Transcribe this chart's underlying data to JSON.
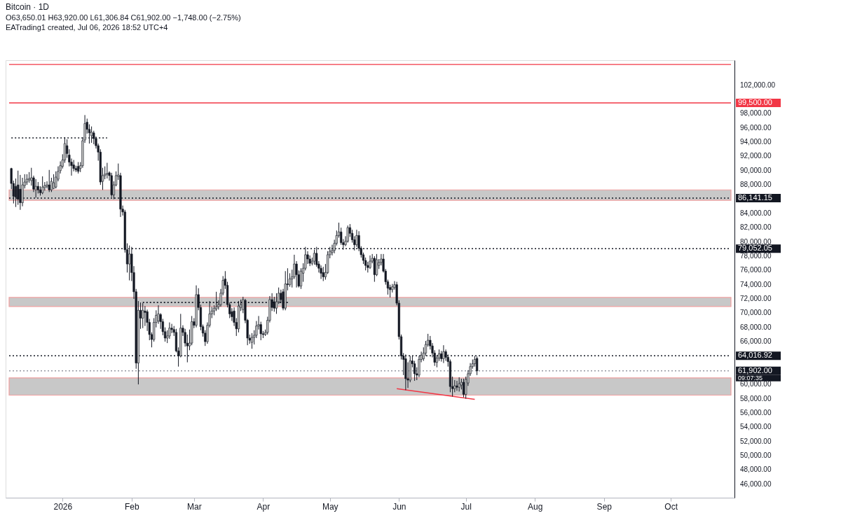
{
  "chart_data": {
    "type": "candlestick",
    "title": "Bitcoin · 1D",
    "subtitle": "O63,650.01 H63,920.00 L61,306.84 C61,902.00 −1,748.00 (−2.75%)",
    "annotations": [
      "EATrading1 created, Jul 06, 2026 18:52 UTC+4",
      "09:07:35"
    ],
    "x": [
      "2025-12-09",
      "2025-12-10",
      "2025-12-11",
      "2025-12-12",
      "2025-12-13",
      "2025-12-14",
      "2025-12-15",
      "2025-12-16",
      "2025-12-17",
      "2025-12-18",
      "2025-12-19",
      "2025-12-20",
      "2025-12-21",
      "2025-12-22",
      "2025-12-23",
      "2025-12-24",
      "2025-12-25",
      "2025-12-26",
      "2025-12-27",
      "2025-12-28",
      "2025-12-29",
      "2025-12-30",
      "2025-12-31",
      "2026-01-01",
      "2026-01-02",
      "2026-01-03",
      "2026-01-04",
      "2026-01-05",
      "2026-01-06",
      "2026-01-07",
      "2026-01-08",
      "2026-01-09",
      "2026-01-10",
      "2026-01-11",
      "2026-01-12",
      "2026-01-13",
      "2026-01-14",
      "2026-01-15",
      "2026-01-16",
      "2026-01-17",
      "2026-01-18",
      "2026-01-19",
      "2026-01-20",
      "2026-01-21",
      "2026-01-22",
      "2026-01-23",
      "2026-01-24",
      "2026-01-25",
      "2026-01-26",
      "2026-01-27",
      "2026-01-28",
      "2026-01-29",
      "2026-01-30",
      "2026-01-31",
      "2026-02-01",
      "2026-02-02",
      "2026-02-03",
      "2026-02-04",
      "2026-02-05",
      "2026-02-06",
      "2026-02-07",
      "2026-02-08",
      "2026-02-09",
      "2026-02-10",
      "2026-02-11",
      "2026-02-12",
      "2026-02-13",
      "2026-02-14",
      "2026-02-15",
      "2026-02-16",
      "2026-02-17",
      "2026-02-18",
      "2026-02-19",
      "2026-02-20",
      "2026-02-21",
      "2026-02-22",
      "2026-02-23",
      "2026-02-24",
      "2026-02-25",
      "2026-02-26",
      "2026-02-27",
      "2026-02-28",
      "2026-03-01",
      "2026-03-02",
      "2026-03-03",
      "2026-03-04",
      "2026-03-05",
      "2026-03-06",
      "2026-03-07",
      "2026-03-08",
      "2026-03-09",
      "2026-03-10",
      "2026-03-11",
      "2026-03-12",
      "2026-03-13",
      "2026-03-14",
      "2026-03-15",
      "2026-03-16",
      "2026-03-17",
      "2026-03-18",
      "2026-03-19",
      "2026-03-20",
      "2026-03-21",
      "2026-03-22",
      "2026-03-23",
      "2026-03-24",
      "2026-03-25",
      "2026-03-26",
      "2026-03-27",
      "2026-03-28",
      "2026-03-29",
      "2026-03-30",
      "2026-03-31",
      "2026-04-01",
      "2026-04-02",
      "2026-04-03",
      "2026-04-04",
      "2026-04-05",
      "2026-04-06",
      "2026-04-07",
      "2026-04-08",
      "2026-04-09",
      "2026-04-10",
      "2026-04-11",
      "2026-04-12",
      "2026-04-13",
      "2026-04-14",
      "2026-04-15",
      "2026-04-16",
      "2026-04-17",
      "2026-04-18",
      "2026-04-19",
      "2026-04-20",
      "2026-04-21",
      "2026-04-22",
      "2026-04-23",
      "2026-04-24",
      "2026-04-25",
      "2026-04-26",
      "2026-04-27",
      "2026-04-28",
      "2026-04-29",
      "2026-04-30",
      "2026-05-01",
      "2026-05-02",
      "2026-05-03",
      "2026-05-04",
      "2026-05-05",
      "2026-05-06",
      "2026-05-07",
      "2026-05-08",
      "2026-05-09",
      "2026-05-10",
      "2026-05-11",
      "2026-05-12",
      "2026-05-13",
      "2026-05-14",
      "2026-05-15",
      "2026-05-16",
      "2026-05-17",
      "2026-05-18",
      "2026-05-19",
      "2026-05-20",
      "2026-05-21",
      "2026-05-22",
      "2026-05-23",
      "2026-05-24",
      "2026-05-25",
      "2026-05-26",
      "2026-05-27",
      "2026-05-28",
      "2026-05-29",
      "2026-05-30",
      "2026-05-31",
      "2026-06-01",
      "2026-06-02",
      "2026-06-03",
      "2026-06-04",
      "2026-06-05",
      "2026-06-06",
      "2026-06-07",
      "2026-06-08",
      "2026-06-09",
      "2026-06-10",
      "2026-06-11",
      "2026-06-12",
      "2026-06-13",
      "2026-06-14",
      "2026-06-15",
      "2026-06-16",
      "2026-06-17",
      "2026-06-18",
      "2026-06-19",
      "2026-06-20",
      "2026-06-21",
      "2026-06-22",
      "2026-06-23",
      "2026-06-24",
      "2026-06-25",
      "2026-06-26",
      "2026-06-27",
      "2026-06-28",
      "2026-06-29",
      "2026-06-30",
      "2026-07-01",
      "2026-07-02",
      "2026-07-03",
      "2026-07-04",
      "2026-07-05",
      "2026-07-06"
    ],
    "ohlc": [
      [
        90300,
        90400,
        87400,
        88200
      ],
      [
        88200,
        88600,
        85400,
        86400
      ],
      [
        87800,
        88900,
        84900,
        86300
      ],
      [
        88000,
        90000,
        85200,
        86000
      ],
      [
        87400,
        89400,
        84500,
        85500
      ],
      [
        85500,
        89000,
        85000,
        88000
      ],
      [
        87900,
        89500,
        87500,
        88400
      ],
      [
        88400,
        89500,
        88000,
        88800
      ],
      [
        88700,
        89800,
        88300,
        88900
      ],
      [
        88600,
        90400,
        87900,
        89000
      ],
      [
        89000,
        89300,
        87000,
        87400
      ],
      [
        87300,
        88800,
        86200,
        87800
      ],
      [
        87800,
        88400,
        86800,
        87300
      ],
      [
        87300,
        87800,
        86500,
        86900
      ],
      [
        86900,
        89200,
        86700,
        87700
      ],
      [
        87600,
        88400,
        87200,
        87900
      ],
      [
        87800,
        88500,
        87500,
        88000
      ],
      [
        88000,
        90100,
        87000,
        87300
      ],
      [
        87300,
        89000,
        87000,
        88500
      ],
      [
        87500,
        89500,
        87400,
        88300
      ],
      [
        87700,
        89900,
        87500,
        89100
      ],
      [
        88800,
        90600,
        88500,
        89900
      ],
      [
        90000,
        91300,
        89600,
        90700
      ],
      [
        90600,
        92300,
        90300,
        91500
      ],
      [
        91500,
        94700,
        91100,
        93800
      ],
      [
        93500,
        94400,
        91800,
        92400
      ],
      [
        92200,
        93000,
        90600,
        91200
      ],
      [
        91200,
        91700,
        89300,
        90700
      ],
      [
        90800,
        91500,
        89900,
        90300
      ],
      [
        90300,
        90700,
        89800,
        90100
      ],
      [
        90600,
        91200,
        89600,
        89900
      ],
      [
        90300,
        91200,
        89800,
        90700
      ],
      [
        90700,
        94700,
        90400,
        94200
      ],
      [
        94300,
        97800,
        93900,
        96600
      ],
      [
        96800,
        97300,
        95200,
        95800
      ],
      [
        95800,
        96500,
        93800,
        95300
      ],
      [
        94900,
        96200,
        93900,
        95400
      ],
      [
        95300,
        95600,
        93700,
        94500
      ],
      [
        94500,
        94800,
        93100,
        93500
      ],
      [
        93500,
        93800,
        91400,
        92600
      ],
      [
        92600,
        93000,
        88000,
        88400
      ],
      [
        88500,
        90400,
        87300,
        89300
      ],
      [
        89300,
        90600,
        88800,
        89500
      ],
      [
        89500,
        91100,
        88900,
        89600
      ],
      [
        89700,
        89900,
        88600,
        89300
      ],
      [
        89300,
        89700,
        86300,
        86600
      ],
      [
        86600,
        88500,
        86000,
        88000
      ],
      [
        88000,
        89900,
        87800,
        89300
      ],
      [
        89200,
        91000,
        88700,
        89400
      ],
      [
        89300,
        89700,
        83500,
        84600
      ],
      [
        84600,
        85100,
        83700,
        84200
      ],
      [
        84200,
        84500,
        78500,
        78900
      ],
      [
        78900,
        79800,
        75700,
        76900
      ],
      [
        76900,
        79500,
        74600,
        78300
      ],
      [
        78300,
        79300,
        74500,
        75700
      ],
      [
        75700,
        76600,
        72000,
        73000
      ],
      [
        73000,
        73400,
        62200,
        63000
      ],
      [
        63000,
        71700,
        60000,
        70400
      ],
      [
        70400,
        71500,
        67800,
        69300
      ],
      [
        69300,
        71400,
        67900,
        70400
      ],
      [
        70300,
        71000,
        68200,
        70100
      ],
      [
        70200,
        70500,
        67500,
        68700
      ],
      [
        68700,
        69200,
        66200,
        67000
      ],
      [
        67000,
        67300,
        65200,
        66300
      ],
      [
        66300,
        69300,
        66000,
        68700
      ],
      [
        68700,
        70400,
        68000,
        69700
      ],
      [
        68900,
        71100,
        68500,
        69900
      ],
      [
        69800,
        70000,
        67800,
        68800
      ],
      [
        68800,
        69200,
        66900,
        67400
      ],
      [
        67400,
        68000,
        66000,
        66500
      ],
      [
        66500,
        67600,
        65800,
        66800
      ],
      [
        66800,
        68700,
        66400,
        67900
      ],
      [
        67900,
        68500,
        67200,
        67700
      ],
      [
        67700,
        68200,
        66800,
        67300
      ],
      [
        67300,
        67800,
        64500,
        64700
      ],
      [
        64700,
        65200,
        62500,
        64000
      ],
      [
        64000,
        69900,
        63800,
        67900
      ],
      [
        67900,
        68300,
        66800,
        67300
      ],
      [
        67300,
        67800,
        65300,
        65800
      ],
      [
        65800,
        67000,
        63100,
        65400
      ],
      [
        65400,
        67700,
        64800,
        65800
      ],
      [
        65800,
        69600,
        65500,
        68800
      ],
      [
        68800,
        69300,
        67900,
        68300
      ],
      [
        68300,
        73900,
        68000,
        72600
      ],
      [
        72600,
        73500,
        70400,
        70800
      ],
      [
        70800,
        71200,
        67600,
        68100
      ],
      [
        68100,
        68400,
        66700,
        67200
      ],
      [
        67200,
        67600,
        65400,
        66000
      ],
      [
        66000,
        68700,
        65700,
        68300
      ],
      [
        68300,
        71700,
        68000,
        69900
      ],
      [
        69900,
        70900,
        69300,
        70300
      ],
      [
        70300,
        71100,
        69700,
        70700
      ],
      [
        70600,
        73000,
        70300,
        70900
      ],
      [
        70900,
        71800,
        70500,
        71200
      ],
      [
        71200,
        73400,
        70900,
        72800
      ],
      [
        72800,
        75200,
        72500,
        74600
      ],
      [
        74800,
        75900,
        73400,
        73900
      ],
      [
        73900,
        74400,
        70800,
        71200
      ],
      [
        71200,
        71500,
        69300,
        69900
      ],
      [
        70200,
        70700,
        68900,
        69500
      ],
      [
        70300,
        70800,
        68200,
        68700
      ],
      [
        68700,
        69300,
        66800,
        67800
      ],
      [
        67800,
        71700,
        67300,
        71000
      ],
      [
        70800,
        71900,
        70300,
        71200
      ],
      [
        70500,
        72300,
        70000,
        71900
      ],
      [
        71800,
        72000,
        68600,
        69000
      ],
      [
        69000,
        69200,
        65500,
        66500
      ],
      [
        66500,
        67000,
        65700,
        66200
      ],
      [
        65900,
        67200,
        65000,
        66600
      ],
      [
        66600,
        67600,
        65600,
        66900
      ],
      [
        66900,
        68900,
        66500,
        68200
      ],
      [
        68200,
        69600,
        67700,
        68400
      ],
      [
        68400,
        68800,
        66200,
        67100
      ],
      [
        67100,
        67500,
        66500,
        67000
      ],
      [
        67000,
        67700,
        66800,
        67300
      ],
      [
        67300,
        69500,
        67000,
        69000
      ],
      [
        69000,
        72400,
        68700,
        71900
      ],
      [
        71900,
        72800,
        70300,
        70800
      ],
      [
        71600,
        72300,
        70200,
        70700
      ],
      [
        70700,
        72800,
        69900,
        71600
      ],
      [
        71600,
        73600,
        71300,
        72800
      ],
      [
        72800,
        73300,
        71400,
        71900
      ],
      [
        73000,
        73400,
        70400,
        70700
      ],
      [
        70700,
        75900,
        70400,
        74100
      ],
      [
        74100,
        76300,
        73200,
        74000
      ],
      [
        74000,
        75600,
        73700,
        74800
      ],
      [
        74800,
        76100,
        73600,
        75100
      ],
      [
        75100,
        78200,
        74800,
        76900
      ],
      [
        76900,
        77300,
        73600,
        75400
      ],
      [
        75400,
        76000,
        73600,
        73800
      ],
      [
        73800,
        76300,
        73400,
        75900
      ],
      [
        75600,
        77000,
        74400,
        76300
      ],
      [
        76300,
        79300,
        76000,
        78200
      ],
      [
        78200,
        78700,
        76900,
        77600
      ],
      [
        77600,
        78100,
        76600,
        77000
      ],
      [
        77000,
        77800,
        76700,
        77300
      ],
      [
        77300,
        78900,
        76800,
        78400
      ],
      [
        78400,
        79300,
        76500,
        76800
      ],
      [
        76900,
        77300,
        75700,
        76300
      ],
      [
        76300,
        76700,
        74800,
        75600
      ],
      [
        75700,
        76500,
        74500,
        75100
      ],
      [
        75100,
        76900,
        74700,
        75700
      ],
      [
        75700,
        78700,
        75500,
        78200
      ],
      [
        78200,
        79300,
        77700,
        78700
      ],
      [
        78500,
        79600,
        78100,
        78800
      ],
      [
        78800,
        80300,
        78400,
        79800
      ],
      [
        79800,
        81600,
        79500,
        80900
      ],
      [
        80900,
        82700,
        80600,
        81400
      ],
      [
        81400,
        82000,
        79600,
        79900
      ],
      [
        79900,
        80400,
        78900,
        79600
      ],
      [
        79600,
        80800,
        79400,
        80100
      ],
      [
        80100,
        82300,
        79900,
        82000
      ],
      [
        82000,
        82500,
        80700,
        81200
      ],
      [
        81200,
        81700,
        79900,
        80300
      ],
      [
        80300,
        80800,
        78800,
        79600
      ],
      [
        79600,
        81700,
        79300,
        80900
      ],
      [
        80900,
        81500,
        78700,
        79100
      ],
      [
        79100,
        79400,
        77800,
        78200
      ],
      [
        78200,
        78500,
        76900,
        77400
      ],
      [
        77400,
        77800,
        76000,
        76700
      ],
      [
        76700,
        77200,
        75700,
        76400
      ],
      [
        76400,
        78100,
        76200,
        77300
      ],
      [
        77300,
        78300,
        77000,
        77700
      ],
      [
        77700,
        78000,
        74400,
        75400
      ],
      [
        75400,
        78300,
        75200,
        77500
      ],
      [
        76700,
        77600,
        76200,
        77100
      ],
      [
        77100,
        78300,
        76700,
        77600
      ],
      [
        77600,
        78300,
        75700,
        75900
      ],
      [
        75900,
        76200,
        74000,
        74400
      ],
      [
        74400,
        74700,
        72600,
        73500
      ],
      [
        73600,
        74000,
        72200,
        73300
      ],
      [
        73300,
        74100,
        72900,
        73700
      ],
      [
        73600,
        74500,
        73300,
        74000
      ],
      [
        74000,
        74400,
        71100,
        71400
      ],
      [
        71400,
        71800,
        66300,
        66700
      ],
      [
        66700,
        67000,
        63500,
        64000
      ],
      [
        64000,
        64400,
        61300,
        63500
      ],
      [
        63600,
        64200,
        59200,
        60800
      ],
      [
        60800,
        63100,
        59500,
        60600
      ],
      [
        60600,
        64000,
        60300,
        63300
      ],
      [
        63300,
        64000,
        62400,
        62900
      ],
      [
        62900,
        63300,
        60500,
        61500
      ],
      [
        61500,
        62400,
        60600,
        61300
      ],
      [
        61300,
        64000,
        61000,
        63500
      ],
      [
        63500,
        64600,
        63100,
        64100
      ],
      [
        63600,
        65200,
        63300,
        64400
      ],
      [
        64400,
        66100,
        64000,
        65600
      ],
      [
        65600,
        67100,
        65300,
        66200
      ],
      [
        66200,
        66800,
        64900,
        65400
      ],
      [
        65400,
        65800,
        63800,
        64400
      ],
      [
        64400,
        64800,
        62600,
        63100
      ],
      [
        63100,
        64100,
        62400,
        63700
      ],
      [
        63700,
        64900,
        63300,
        64300
      ],
      [
        64300,
        64700,
        63200,
        63600
      ],
      [
        63600,
        65500,
        63000,
        64600
      ],
      [
        64600,
        64900,
        63300,
        63800
      ],
      [
        63800,
        64200,
        62500,
        63200
      ],
      [
        63200,
        63500,
        58900,
        59700
      ],
      [
        59700,
        61100,
        58300,
        59400
      ],
      [
        59400,
        60600,
        58900,
        59800
      ],
      [
        59800,
        60500,
        59100,
        59600
      ],
      [
        59600,
        61000,
        59000,
        60100
      ],
      [
        59900,
        60800,
        59300,
        60300
      ],
      [
        60300,
        60800,
        58200,
        58600
      ],
      [
        58600,
        61100,
        58000,
        60700
      ],
      [
        60200,
        62000,
        59800,
        61500
      ],
      [
        61500,
        63000,
        61200,
        62500
      ],
      [
        62500,
        63500,
        62200,
        62900
      ],
      [
        62900,
        64000,
        62500,
        63500
      ],
      [
        63650.01,
        63920,
        61306.84,
        61902
      ]
    ],
    "series": [
      {
        "type": "line",
        "x": [
          "2026-05-31",
          "2026-07-05"
        ],
        "values": [
          59400,
          57900
        ],
        "color": "#f23645",
        "line_style": "solid"
      },
      {
        "type": "line",
        "x": [
          "2025-12-09",
          "2026-01-21"
        ],
        "values": [
          94600,
          94600
        ],
        "color": "#131722",
        "line_style": "dotted"
      },
      {
        "type": "line",
        "x": [
          "2026-02-06",
          "2026-04-13"
        ],
        "values": [
          71500,
          71500
        ],
        "color": "#131722",
        "line_style": "dotted"
      }
    ],
    "ref_lines": [
      {
        "axis": "y",
        "value": 104900,
        "color": "#f23645",
        "line_style": "solid"
      },
      {
        "axis": "y",
        "value": 99500,
        "label": "99,500.00",
        "color": "#f23645",
        "line_style": "solid"
      },
      {
        "axis": "y",
        "value": 86141.15,
        "label": "86,141.15",
        "color": "#131722",
        "line_style": "dotted"
      },
      {
        "axis": "y",
        "value": 79052.05,
        "label": "79,052.05",
        "color": "#131722",
        "line_style": "dotted"
      },
      {
        "axis": "y",
        "value": 64016.92,
        "label": "64,016.92",
        "color": "#131722",
        "line_style": "dotted"
      },
      {
        "axis": "y",
        "value": 61902,
        "label": "61,902.00",
        "color": "#9598a1",
        "line_style": "dotted"
      }
    ],
    "bands": [
      {
        "axis": "y",
        "from": 85830,
        "to": 87300,
        "color": "#c8c8c8"
      },
      {
        "axis": "y",
        "from": 70940,
        "to": 72200,
        "color": "#c8c8c8"
      },
      {
        "axis": "y",
        "from": 58490,
        "to": 60920,
        "color": "#c8c8c8"
      }
    ],
    "xlim": [
      "2025-12-08",
      "2026-10-28"
    ],
    "xticks": [
      {
        "value": "2026-01-01",
        "label": "2026"
      },
      {
        "value": "2026-02-01",
        "label": "Feb"
      },
      {
        "value": "2026-03-01",
        "label": "Mar"
      },
      {
        "value": "2026-04-01",
        "label": "Apr"
      },
      {
        "value": "2026-05-01",
        "label": "May"
      },
      {
        "value": "2026-06-01",
        "label": "Jun"
      },
      {
        "value": "2026-07-01",
        "label": "Jul"
      },
      {
        "value": "2026-08-01",
        "label": "Aug"
      },
      {
        "value": "2026-09-01",
        "label": "Sep"
      },
      {
        "value": "2026-10-01",
        "label": "Oct"
      }
    ],
    "ylim": [
      44100,
      105500
    ],
    "yticks": [
      {
        "value": 46000,
        "label": "46,000.00"
      },
      {
        "value": 48000,
        "label": "48,000.00"
      },
      {
        "value": 50000,
        "label": "50,000.00"
      },
      {
        "value": 52000,
        "label": "52,000.00"
      },
      {
        "value": 54000,
        "label": "54,000.00"
      },
      {
        "value": 56000,
        "label": "56,000.00"
      },
      {
        "value": 58000,
        "label": "58,000.00"
      },
      {
        "value": 60000,
        "label": "60,000.00"
      },
      {
        "value": 66000,
        "label": "66,000.00"
      },
      {
        "value": 68000,
        "label": "68,000.00"
      },
      {
        "value": 70000,
        "label": "70,000.00"
      },
      {
        "value": 72000,
        "label": "72,000.00"
      },
      {
        "value": 74000,
        "label": "74,000.00"
      },
      {
        "value": 76000,
        "label": "76,000.00"
      },
      {
        "value": 78000,
        "label": "78,000.00"
      },
      {
        "value": 80000,
        "label": "80,000.00"
      },
      {
        "value": 82000,
        "label": "82,000.00"
      },
      {
        "value": 84000,
        "label": "84,000.00"
      },
      {
        "value": 88000,
        "label": "88,000.00"
      },
      {
        "value": 90000,
        "label": "90,000.00"
      },
      {
        "value": 92000,
        "label": "92,000.00"
      },
      {
        "value": 94000,
        "label": "94,000.00"
      },
      {
        "value": 96000,
        "label": "96,000.00"
      },
      {
        "value": 98000,
        "label": "98,000.00"
      },
      {
        "value": 102000,
        "label": "102,000.00"
      }
    ],
    "grid": false
  }
}
